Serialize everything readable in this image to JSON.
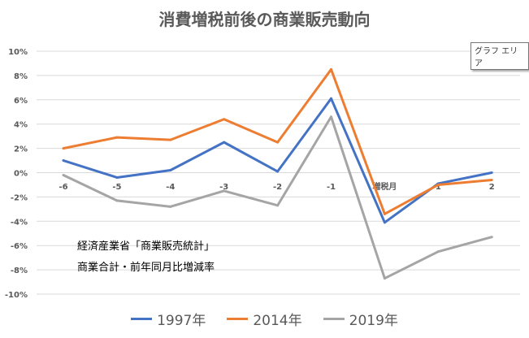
{
  "chart_data": {
    "type": "line",
    "title": "消費増税前後の商業販売動向",
    "categories": [
      "-6",
      "-5",
      "-4",
      "-3",
      "-2",
      "-1",
      "増税月",
      "1",
      "2"
    ],
    "ylim": [
      -10,
      10
    ],
    "yticks": [
      "10%",
      "8%",
      "6%",
      "4%",
      "2%",
      "0%",
      "-2%",
      "-4%",
      "-6%",
      "-8%",
      "-10%"
    ],
    "grid": true,
    "legend": "bottom",
    "series": [
      {
        "name": "1997年",
        "color": "#4472C4",
        "values": [
          1.0,
          -0.4,
          0.2,
          2.5,
          0.1,
          6.1,
          -4.1,
          -0.9,
          0.0
        ]
      },
      {
        "name": "2014年",
        "color": "#ED7D31",
        "values": [
          2.0,
          2.9,
          2.7,
          4.4,
          2.5,
          8.5,
          -3.4,
          -1.0,
          -0.6
        ]
      },
      {
        "name": "2019年",
        "color": "#A5A5A5",
        "values": [
          -0.2,
          -2.3,
          -2.8,
          -1.5,
          -2.7,
          4.6,
          -8.7,
          -6.5,
          -5.3
        ]
      }
    ],
    "annotations": [
      "経済産業省「商業販売統計」",
      "商業合計・前年同月比増減率"
    ]
  },
  "tooltip": "グラフ エリア"
}
